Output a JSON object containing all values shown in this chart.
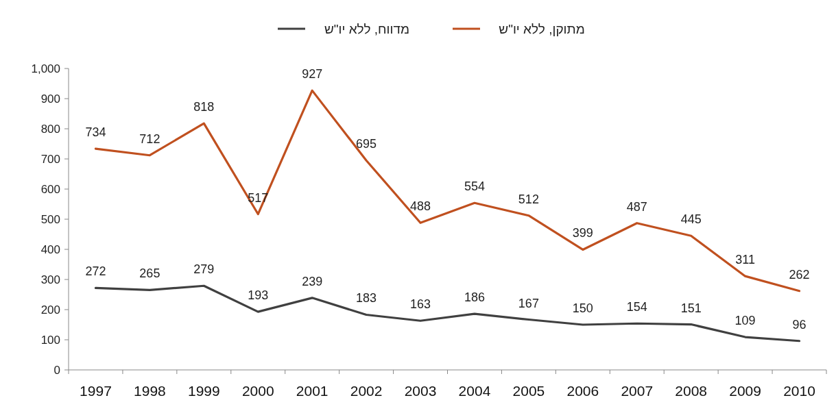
{
  "chart_data": {
    "type": "line",
    "categories": [
      "1997",
      "1998",
      "1999",
      "2000",
      "2001",
      "2002",
      "2003",
      "2004",
      "2005",
      "2006",
      "2007",
      "2008",
      "2009",
      "2010"
    ],
    "series": [
      {
        "name": "מדווח, ללא יו\"ש",
        "color": "#404040",
        "values": [
          272,
          265,
          279,
          193,
          239,
          183,
          163,
          186,
          167,
          150,
          154,
          151,
          109,
          96
        ]
      },
      {
        "name": "מתוקן, ללא יו\"ש",
        "color": "#c0501f",
        "values": [
          734,
          712,
          818,
          517,
          927,
          695,
          488,
          554,
          512,
          399,
          487,
          445,
          311,
          262
        ]
      }
    ],
    "ylim": [
      0,
      1000
    ],
    "yticks": [
      0,
      100,
      200,
      300,
      400,
      500,
      600,
      700,
      800,
      900,
      {
        "value": 1000,
        "label": "1,000"
      }
    ],
    "data_labels": true,
    "grid": false,
    "legend": "top",
    "marker": "none",
    "line_style": "solid"
  }
}
